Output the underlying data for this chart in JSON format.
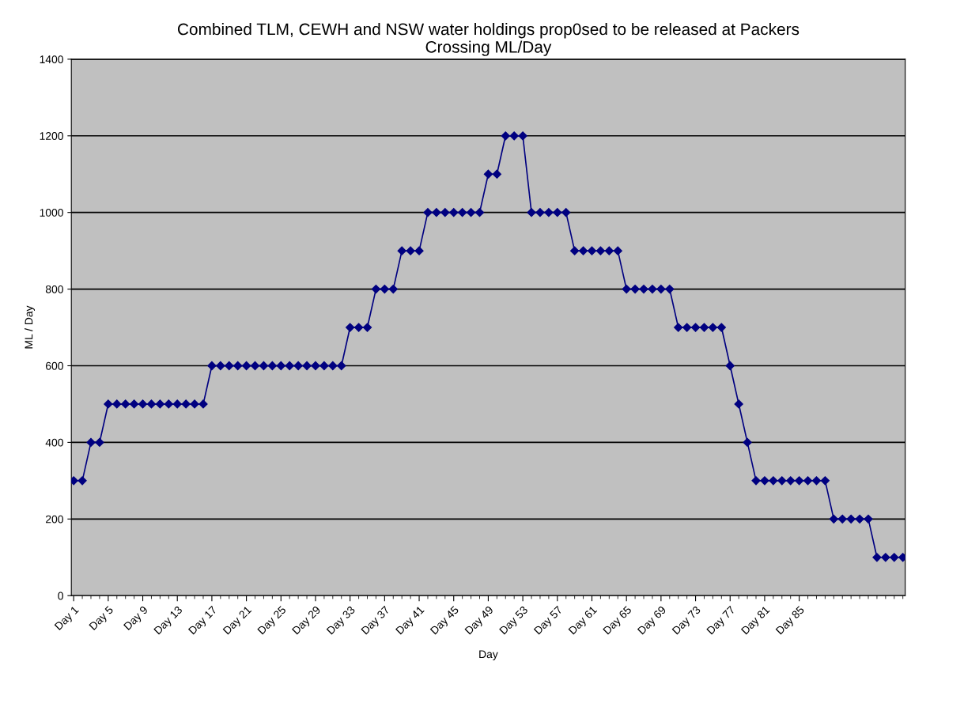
{
  "chart_data": {
    "type": "line",
    "title": "Combined TLM, CEWH and NSW water holdings prop0sed to be released at Packers\nCrossing ML/Day",
    "xlabel": "Day",
    "ylabel": "ML / Day",
    "categories": [
      "Day 1",
      null,
      null,
      null,
      "Day 5",
      null,
      null,
      null,
      "Day 9",
      null,
      null,
      null,
      "Day 13",
      null,
      null,
      null,
      "Day 17",
      null,
      null,
      null,
      "Day 21",
      null,
      null,
      null,
      "Day 25",
      null,
      null,
      null,
      "Day 29",
      null,
      null,
      null,
      "Day 33",
      null,
      null,
      null,
      "Day 37",
      null,
      null,
      null,
      "Day 41",
      null,
      null,
      null,
      "Day 45",
      null,
      null,
      null,
      "Day 49",
      null,
      null,
      null,
      "Day 53",
      null,
      null,
      null,
      "Day 57",
      null,
      null,
      null,
      "Day 61",
      null,
      null,
      null,
      "Day 65",
      null,
      null,
      null,
      "Day 69",
      null,
      null,
      null,
      "Day 73",
      null,
      null,
      null,
      "Day 77",
      null,
      null,
      null,
      "Day 81",
      null,
      null,
      null,
      "Day 85",
      null,
      null,
      null,
      null,
      null,
      null,
      null,
      null,
      null,
      null,
      null,
      null
    ],
    "series": [
      {
        "color": "#000080",
        "values": [
          300,
          300,
          400,
          400,
          500,
          500,
          500,
          500,
          500,
          500,
          500,
          500,
          500,
          500,
          500,
          500,
          600,
          600,
          600,
          600,
          600,
          600,
          600,
          600,
          600,
          600,
          600,
          600,
          600,
          600,
          600,
          600,
          700,
          700,
          700,
          800,
          800,
          800,
          900,
          900,
          900,
          1000,
          1000,
          1000,
          1000,
          1000,
          1000,
          1000,
          1100,
          1100,
          1200,
          1200,
          1200,
          1000,
          1000,
          1000,
          1000,
          1000,
          900,
          900,
          900,
          900,
          900,
          900,
          800,
          800,
          800,
          800,
          800,
          800,
          700,
          700,
          700,
          700,
          700,
          700,
          600,
          500,
          400,
          300,
          300,
          300,
          300,
          300,
          300,
          300,
          300,
          300,
          200,
          200,
          200,
          200,
          200,
          100,
          100,
          100,
          100
        ]
      }
    ],
    "ylim": [
      0,
      1400
    ],
    "yticks": [
      0,
      200,
      400,
      600,
      800,
      1000,
      1200,
      1400
    ],
    "grid": "y",
    "legend": false,
    "marker": "diamond",
    "line_style": "solid"
  }
}
